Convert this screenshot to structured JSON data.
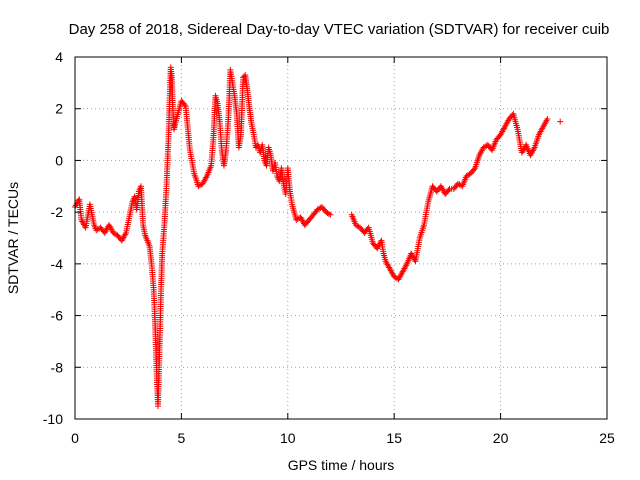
{
  "chart_data": {
    "type": "scatter",
    "title": "Day 258 of 2018, Sidereal Day-to-day VTEC variation (SDTVAR) for receiver cuib",
    "xlabel": "GPS time / hours",
    "ylabel": "SDTVAR / TECUs",
    "xlim": [
      0,
      25
    ],
    "ylim": [
      -10,
      4
    ],
    "xticks": [
      0,
      5,
      10,
      15,
      20,
      25
    ],
    "yticks": [
      4,
      2,
      0,
      -2,
      -4,
      -6,
      -8,
      -10
    ],
    "grid": true,
    "marker": "+",
    "color": "#ff0000",
    "series": [
      {
        "name": "cuib",
        "x": [
          0.0,
          0.2,
          0.3,
          0.5,
          0.7,
          0.9,
          1.0,
          1.2,
          1.4,
          1.6,
          1.8,
          2.0,
          2.2,
          2.4,
          2.6,
          2.7,
          2.8,
          2.9,
          3.0,
          3.1,
          3.2,
          3.3,
          3.4,
          3.5,
          3.6,
          3.7,
          3.75,
          3.8,
          3.85,
          3.9,
          3.95,
          4.0,
          4.05,
          4.1,
          4.2,
          4.3,
          4.4,
          4.45,
          4.5,
          4.55,
          4.6,
          4.65,
          4.7,
          4.8,
          4.9,
          5.0,
          5.2,
          5.4,
          5.6,
          5.8,
          6.0,
          6.2,
          6.4,
          6.5,
          6.6,
          6.7,
          6.8,
          6.9,
          7.0,
          7.1,
          7.2,
          7.3,
          7.4,
          7.5,
          7.6,
          7.7,
          7.8,
          7.9,
          8.0,
          8.1,
          8.2,
          8.3,
          8.4,
          8.5,
          8.6,
          8.7,
          8.8,
          8.9,
          9.0,
          9.1,
          9.2,
          9.3,
          9.4,
          9.5,
          9.6,
          9.7,
          9.8,
          9.9,
          10.0,
          10.1,
          10.2,
          10.3,
          10.4,
          10.6,
          10.8,
          11.0,
          11.2,
          11.4,
          11.6,
          11.8,
          12.0,
          13.0,
          13.1,
          13.2,
          13.4,
          13.6,
          13.8,
          14.0,
          14.2,
          14.4,
          14.5,
          14.6,
          14.8,
          15.0,
          15.2,
          15.4,
          15.6,
          15.8,
          16.0,
          16.2,
          16.4,
          16.6,
          16.8,
          17.0,
          17.2,
          17.4,
          17.6,
          17.8,
          18.0,
          18.2,
          18.4,
          18.6,
          18.8,
          19.0,
          19.2,
          19.4,
          19.6,
          19.8,
          20.0,
          20.2,
          20.4,
          20.6,
          20.8,
          21.0,
          21.2,
          21.4,
          21.6,
          21.8,
          22.0,
          22.2,
          22.8
        ],
        "y": [
          -1.8,
          -1.5,
          -2.3,
          -2.6,
          -1.7,
          -2.5,
          -2.7,
          -2.6,
          -2.8,
          -2.5,
          -2.8,
          -2.9,
          -3.1,
          -2.8,
          -2.0,
          -1.6,
          -1.4,
          -1.9,
          -1.2,
          -1.0,
          -2.5,
          -2.9,
          -3.1,
          -3.3,
          -4.0,
          -5.0,
          -6.0,
          -7.2,
          -8.5,
          -9.5,
          -8.0,
          -6.5,
          -4.8,
          -3.6,
          -2.5,
          -1.0,
          1.0,
          2.5,
          3.6,
          3.2,
          2.0,
          1.2,
          1.4,
          1.7,
          2.0,
          2.3,
          2.1,
          0.4,
          -0.5,
          -1.0,
          -0.9,
          -0.6,
          -0.2,
          0.8,
          2.5,
          2.2,
          1.5,
          0.4,
          -0.2,
          0.4,
          1.5,
          3.5,
          3.0,
          2.5,
          1.8,
          0.5,
          1.0,
          3.2,
          3.3,
          2.7,
          2.0,
          1.4,
          1.0,
          0.5,
          0.6,
          0.3,
          0.6,
          0.0,
          -0.2,
          0.5,
          0.2,
          -0.4,
          -0.1,
          -0.6,
          -0.8,
          -0.3,
          -0.9,
          -1.3,
          -0.3,
          -1.2,
          -1.7,
          -2.0,
          -2.3,
          -2.2,
          -2.5,
          -2.3,
          -2.1,
          -1.9,
          -1.8,
          -2.0,
          -2.1,
          -2.1,
          -2.3,
          -2.5,
          -2.6,
          -2.8,
          -2.6,
          -3.2,
          -3.4,
          -3.1,
          -3.6,
          -3.9,
          -4.2,
          -4.5,
          -4.6,
          -4.3,
          -4.0,
          -3.6,
          -3.9,
          -3.0,
          -2.5,
          -1.6,
          -1.0,
          -1.2,
          -1.0,
          -1.3,
          -1.1,
          -1.1,
          -0.9,
          -1.0,
          -0.6,
          -0.5,
          -0.3,
          0.2,
          0.5,
          0.6,
          0.4,
          0.8,
          1.0,
          1.3,
          1.6,
          1.8,
          1.2,
          0.3,
          0.6,
          0.2,
          0.5,
          1.0,
          1.3,
          1.6,
          1.5
        ]
      }
    ]
  }
}
